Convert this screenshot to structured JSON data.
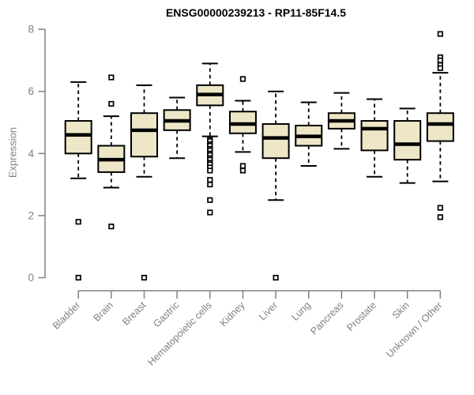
{
  "chart_data": {
    "type": "boxplot",
    "title": "ENSG00000239213 - RP11-85F14.5",
    "xlabel": "",
    "ylabel": "Expression",
    "ylim": [
      0,
      8
    ],
    "yticks": [
      0,
      2,
      4,
      6,
      8
    ],
    "grid": false,
    "legend_position": "none",
    "x_label_rotation": -45,
    "colors": {
      "background": "#FFFFFF",
      "axis": "#808080",
      "tick_text": "#808080",
      "title": "#000000",
      "box_fill": "#EDE6C7",
      "box_stroke": "#000000",
      "median": "#000000",
      "outlier_stroke": "#000000"
    },
    "categories": [
      "Bladder",
      "Brain",
      "Breast",
      "Gastric",
      "Hematopoietic cells",
      "Kidney",
      "Liver",
      "Lung",
      "Pancreas",
      "Prostate",
      "Skin",
      "Unknown / Other"
    ],
    "series": [
      {
        "category": "Bladder",
        "whisker_low": 3.2,
        "q1": 4.0,
        "median": 4.6,
        "q3": 5.05,
        "whisker_high": 6.3,
        "outliers": [
          1.8,
          0
        ]
      },
      {
        "category": "Brain",
        "whisker_low": 2.9,
        "q1": 3.4,
        "median": 3.8,
        "q3": 4.25,
        "whisker_high": 5.2,
        "outliers": [
          6.45,
          5.6,
          1.65
        ]
      },
      {
        "category": "Breast",
        "whisker_low": 3.25,
        "q1": 3.9,
        "median": 4.75,
        "q3": 5.3,
        "whisker_high": 6.2,
        "outliers": [
          0
        ]
      },
      {
        "category": "Gastric",
        "whisker_low": 3.85,
        "q1": 4.75,
        "median": 5.05,
        "q3": 5.4,
        "whisker_high": 5.8,
        "outliers": []
      },
      {
        "category": "Hematopoietic cells",
        "whisker_low": 4.55,
        "q1": 5.55,
        "median": 5.9,
        "q3": 6.2,
        "whisker_high": 6.9,
        "outliers": [
          4.45,
          4.4,
          4.3,
          4.25,
          4.15,
          4.1,
          4.0,
          3.95,
          3.85,
          3.8,
          3.7,
          3.65,
          3.55,
          3.45,
          3.15,
          3.0,
          2.5,
          2.1
        ]
      },
      {
        "category": "Kidney",
        "whisker_low": 4.05,
        "q1": 4.65,
        "median": 4.95,
        "q3": 5.35,
        "whisker_high": 5.7,
        "outliers": [
          6.4,
          3.6,
          3.45
        ]
      },
      {
        "category": "Liver",
        "whisker_low": 2.5,
        "q1": 3.85,
        "median": 4.5,
        "q3": 4.95,
        "whisker_high": 6.0,
        "outliers": [
          0
        ]
      },
      {
        "category": "Lung",
        "whisker_low": 3.6,
        "q1": 4.25,
        "median": 4.55,
        "q3": 4.9,
        "whisker_high": 5.65,
        "outliers": []
      },
      {
        "category": "Pancreas",
        "whisker_low": 4.15,
        "q1": 4.8,
        "median": 5.05,
        "q3": 5.3,
        "whisker_high": 5.95,
        "outliers": []
      },
      {
        "category": "Prostate",
        "whisker_low": 3.25,
        "q1": 4.1,
        "median": 4.8,
        "q3": 5.05,
        "whisker_high": 5.75,
        "outliers": []
      },
      {
        "category": "Skin",
        "whisker_low": 3.05,
        "q1": 3.8,
        "median": 4.3,
        "q3": 5.05,
        "whisker_high": 5.45,
        "outliers": []
      },
      {
        "category": "Unknown / Other",
        "whisker_low": 3.1,
        "q1": 4.4,
        "median": 4.95,
        "q3": 5.3,
        "whisker_high": 6.6,
        "outliers": [
          7.85,
          7.1,
          7.0,
          6.85,
          6.75,
          2.25,
          1.95
        ]
      }
    ]
  }
}
